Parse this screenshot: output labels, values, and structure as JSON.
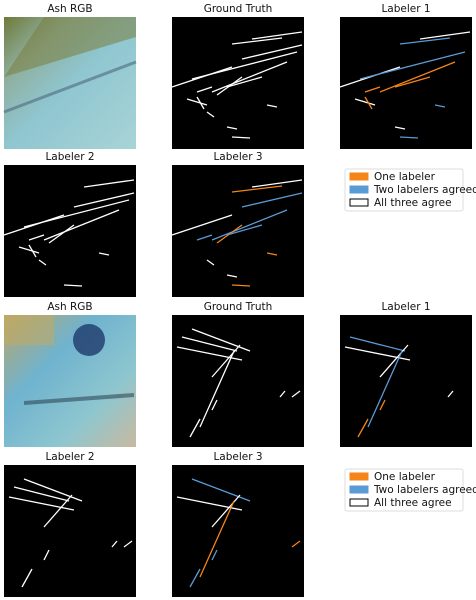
{
  "rows": [
    {
      "panels": [
        "Ash RGB",
        "Ground Truth",
        "Labeler 1"
      ]
    },
    {
      "panels": [
        "Labeler 2",
        "Labeler 3"
      ],
      "legend": [
        "One labeler",
        "Two labelers agreed",
        "All three agree"
      ]
    },
    {
      "panels": [
        "Ash RGB",
        "Ground Truth",
        "Labeler 1"
      ]
    },
    {
      "panels": [
        "Labeler 2",
        "Labeler 3"
      ],
      "legend": [
        "One labeler",
        "Two labelers agreed",
        "All three agree"
      ]
    }
  ]
}
